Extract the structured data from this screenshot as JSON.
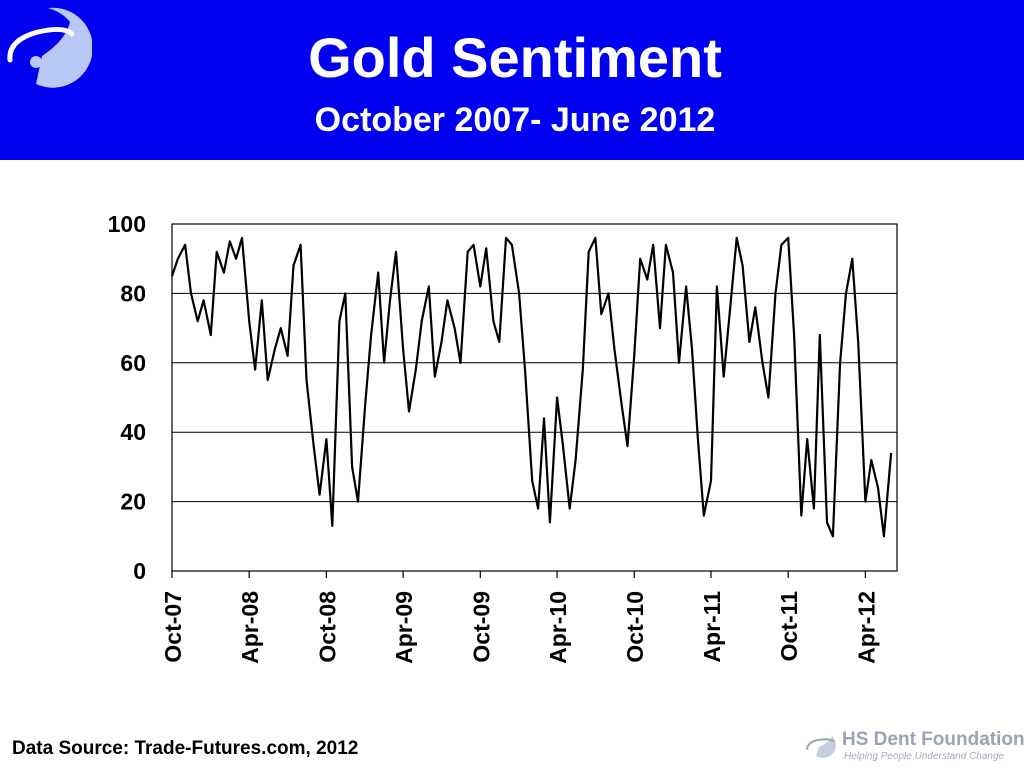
{
  "header": {
    "title": "Gold Sentiment",
    "subtitle": "October 2007- June 2012",
    "background_color": "#0000f0",
    "logo_icon": "orbit-swoosh-logo"
  },
  "chart_data": {
    "type": "line",
    "title": "Gold Sentiment",
    "subtitle": "October 2007- June 2012",
    "xlabel": "",
    "ylabel": "",
    "ylim": [
      0,
      100
    ],
    "yticks": [
      0,
      20,
      40,
      60,
      80,
      100
    ],
    "xticks": [
      "Oct-07",
      "Apr-08",
      "Oct-08",
      "Apr-09",
      "Oct-09",
      "Apr-10",
      "Oct-10",
      "Apr-11",
      "Oct-11",
      "Apr-12"
    ],
    "grid": "horizontal",
    "legend": "none",
    "line_color": "#000000",
    "series": [
      {
        "x": [
          "2007-10-01",
          "2007-10-15",
          "2007-11-01",
          "2007-11-15",
          "2007-12-01",
          "2007-12-15",
          "2008-01-01",
          "2008-01-15",
          "2008-02-01",
          "2008-02-15",
          "2008-03-01",
          "2008-03-15",
          "2008-04-01",
          "2008-04-15",
          "2008-05-01",
          "2008-05-15",
          "2008-06-01",
          "2008-06-15",
          "2008-07-01",
          "2008-07-15",
          "2008-08-01",
          "2008-08-15",
          "2008-09-01",
          "2008-09-15",
          "2008-10-01",
          "2008-10-15",
          "2008-11-01",
          "2008-11-15",
          "2008-12-01",
          "2008-12-15",
          "2009-01-01",
          "2009-01-15",
          "2009-02-01",
          "2009-02-15",
          "2009-03-01",
          "2009-03-15",
          "2009-04-01",
          "2009-04-15",
          "2009-05-01",
          "2009-05-15",
          "2009-06-01",
          "2009-06-15",
          "2009-07-01",
          "2009-07-15",
          "2009-08-01",
          "2009-08-15",
          "2009-09-01",
          "2009-09-15",
          "2009-10-01",
          "2009-10-15",
          "2009-11-01",
          "2009-11-15",
          "2009-12-01",
          "2009-12-15",
          "2010-01-01",
          "2010-01-15",
          "2010-02-01",
          "2010-02-15",
          "2010-03-01",
          "2010-03-15",
          "2010-04-01",
          "2010-04-15",
          "2010-05-01",
          "2010-05-15",
          "2010-06-01",
          "2010-06-15",
          "2010-07-01",
          "2010-07-15",
          "2010-08-01",
          "2010-08-15",
          "2010-09-01",
          "2010-09-15",
          "2010-10-01",
          "2010-10-15",
          "2010-11-01",
          "2010-11-15",
          "2010-12-01",
          "2010-12-15",
          "2011-01-01",
          "2011-01-15",
          "2011-02-01",
          "2011-02-15",
          "2011-03-01",
          "2011-03-15",
          "2011-04-01",
          "2011-04-15",
          "2011-05-01",
          "2011-05-15",
          "2011-06-01",
          "2011-06-15",
          "2011-07-01",
          "2011-07-15",
          "2011-08-01",
          "2011-08-15",
          "2011-09-01",
          "2011-09-15",
          "2011-10-01",
          "2011-10-15",
          "2011-11-01",
          "2011-11-15",
          "2011-12-01",
          "2011-12-15",
          "2012-01-01",
          "2012-01-15",
          "2012-02-01",
          "2012-02-15",
          "2012-03-01",
          "2012-03-15",
          "2012-04-01",
          "2012-04-15",
          "2012-05-01",
          "2012-05-15",
          "2012-06-01"
        ],
        "values": [
          85,
          90,
          94,
          80,
          72,
          78,
          68,
          92,
          86,
          95,
          90,
          96,
          72,
          58,
          78,
          55,
          64,
          70,
          62,
          88,
          94,
          55,
          36,
          22,
          38,
          13,
          72,
          80,
          30,
          20,
          48,
          68,
          86,
          60,
          78,
          92,
          64,
          46,
          58,
          72,
          82,
          56,
          66,
          78,
          70,
          60,
          92,
          94,
          82,
          93,
          72,
          66,
          96,
          94,
          80,
          58,
          26,
          18,
          44,
          14,
          50,
          36,
          18,
          32,
          58,
          92,
          96,
          74,
          80,
          64,
          48,
          36,
          62,
          90,
          84,
          94,
          70,
          94,
          86,
          60,
          82,
          64,
          38,
          16,
          26,
          82,
          56,
          74,
          96,
          88,
          66,
          76,
          60,
          50,
          80,
          94,
          96,
          68,
          16,
          38,
          18,
          68,
          14,
          10,
          60,
          80,
          90,
          66,
          20,
          32,
          24,
          10,
          34
        ]
      }
    ]
  },
  "footer": {
    "source": "Data Source: Trade-Futures.com, 2012",
    "logo_name": "HS Dent Foundation",
    "logo_tagline": "Helping People Understand Change",
    "logo_icon": "swoosh-icon",
    "logo_color": "#97a5b6"
  }
}
